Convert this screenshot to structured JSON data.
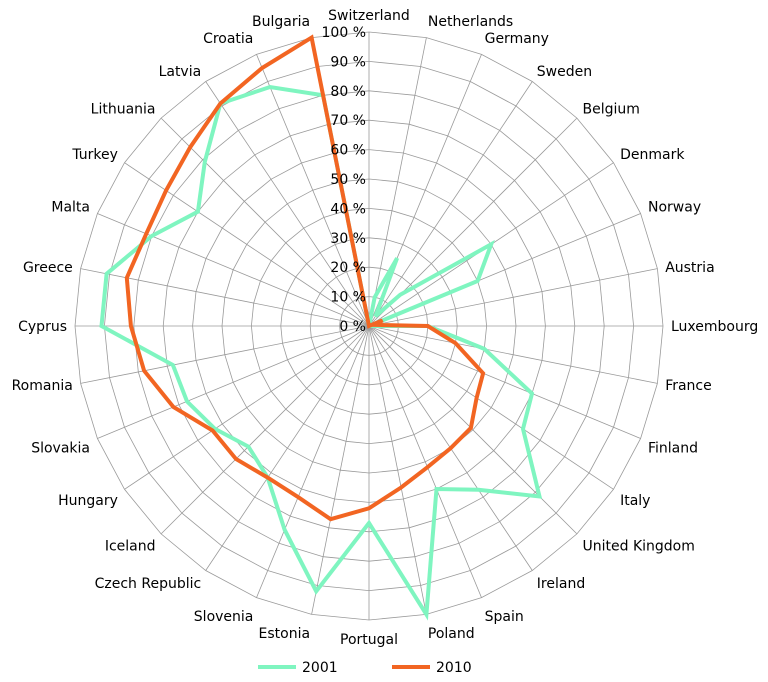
{
  "chart_data": {
    "type": "radar",
    "categories": [
      "Switzerland",
      "Netherlands",
      "Germany",
      "Sweden",
      "Belgium",
      "Denmark",
      "Norway",
      "Austria",
      "Luxembourg",
      "France",
      "Finland",
      "Italy",
      "United Kingdom",
      "Ireland",
      "Spain",
      "Poland",
      "Portugal",
      "Estonia",
      "Slovenia",
      "Czech Republic",
      "Iceland",
      "Hungary",
      "Slovakia",
      "Romania",
      "Cyprus",
      "Greece",
      "Malta",
      "Turkey",
      "Lithuania",
      "Latvia",
      "Croatia",
      "Bulgaria"
    ],
    "ticks": [
      "0 %",
      "10 %",
      "20 %",
      "30 %",
      "40 %",
      "50 %",
      "60 %",
      "70 %",
      "80 %",
      "90 %",
      "100 %"
    ],
    "rmin": 0,
    "rmax": 100,
    "grid": true,
    "legend_position": "bottom",
    "series": [
      {
        "name": "2001",
        "color": "#7ff5c0",
        "values": [
          0,
          10,
          25,
          4,
          15,
          50,
          40,
          0,
          20,
          40,
          60,
          63,
          82,
          67,
          60,
          100,
          67,
          92,
          75,
          62,
          58,
          63,
          67,
          68,
          91,
          91,
          80,
          70,
          79,
          91,
          88,
          80
        ]
      },
      {
        "name": "2010",
        "color": "#f26522",
        "values": [
          0,
          0,
          0,
          0,
          0,
          0,
          5,
          2,
          20,
          30,
          42,
          44,
          49,
          50,
          52,
          56,
          62,
          67,
          63,
          62,
          64,
          64,
          72,
          78,
          81,
          84,
          82,
          83,
          86,
          91,
          95,
          100
        ]
      }
    ]
  }
}
